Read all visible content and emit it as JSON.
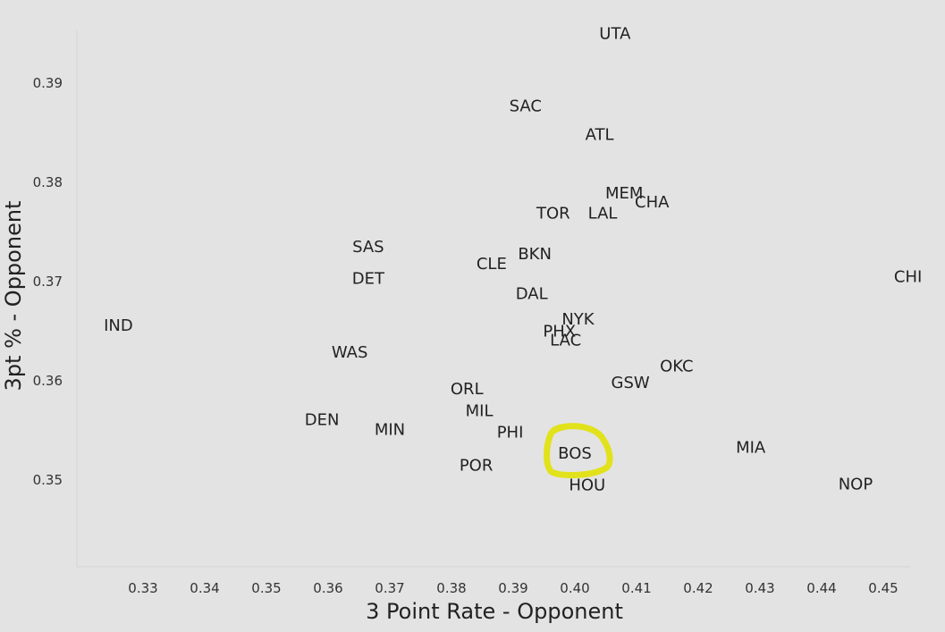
{
  "chart_data": {
    "type": "scatter",
    "title": "",
    "xlabel": "3 Point Rate - Opponent",
    "ylabel": "3pt % - Opponent",
    "xlim": [
      0.32,
      0.455
    ],
    "ylim": [
      0.341,
      0.396
    ],
    "xticks": [
      "0.33",
      "0.34",
      "0.35",
      "0.36",
      "0.37",
      "0.38",
      "0.39",
      "0.40",
      "0.41",
      "0.42",
      "0.43",
      "0.44",
      "0.45"
    ],
    "yticks": [
      "0.35",
      "0.36",
      "0.37",
      "0.38",
      "0.39"
    ],
    "grid": false,
    "points": [
      {
        "label": "UTA",
        "x": 0.4065,
        "y": 0.395
      },
      {
        "label": "SAC",
        "x": 0.392,
        "y": 0.3877
      },
      {
        "label": "ATL",
        "x": 0.404,
        "y": 0.3848
      },
      {
        "label": "MEM",
        "x": 0.408,
        "y": 0.3789
      },
      {
        "label": "CHA",
        "x": 0.4125,
        "y": 0.378
      },
      {
        "label": "TOR",
        "x": 0.3965,
        "y": 0.3769
      },
      {
        "label": "LAL",
        "x": 0.4045,
        "y": 0.3769
      },
      {
        "label": "SAS",
        "x": 0.3665,
        "y": 0.3735
      },
      {
        "label": "BKN",
        "x": 0.3935,
        "y": 0.3728
      },
      {
        "label": "CLE",
        "x": 0.3865,
        "y": 0.3718
      },
      {
        "label": "DET",
        "x": 0.3665,
        "y": 0.3703
      },
      {
        "label": "CHI",
        "x": 0.454,
        "y": 0.3705
      },
      {
        "label": "DAL",
        "x": 0.393,
        "y": 0.3688
      },
      {
        "label": "NYK",
        "x": 0.4005,
        "y": 0.3662
      },
      {
        "label": "IND",
        "x": 0.326,
        "y": 0.3656
      },
      {
        "label": "PHX",
        "x": 0.3975,
        "y": 0.365
      },
      {
        "label": "LAC",
        "x": 0.3985,
        "y": 0.3641
      },
      {
        "label": "WAS",
        "x": 0.3635,
        "y": 0.3629
      },
      {
        "label": "OKC",
        "x": 0.4165,
        "y": 0.3615
      },
      {
        "label": "GSW",
        "x": 0.409,
        "y": 0.3598
      },
      {
        "label": "ORL",
        "x": 0.3825,
        "y": 0.3592
      },
      {
        "label": "MIL",
        "x": 0.3845,
        "y": 0.357
      },
      {
        "label": "DEN",
        "x": 0.359,
        "y": 0.3561
      },
      {
        "label": "MIN",
        "x": 0.37,
        "y": 0.3551
      },
      {
        "label": "PHI",
        "x": 0.3895,
        "y": 0.3548
      },
      {
        "label": "MIA",
        "x": 0.4285,
        "y": 0.3533
      },
      {
        "label": "BOS",
        "x": 0.4,
        "y": 0.3527
      },
      {
        "label": "POR",
        "x": 0.384,
        "y": 0.3515
      },
      {
        "label": "NOP",
        "x": 0.4455,
        "y": 0.3496
      },
      {
        "label": "HOU",
        "x": 0.402,
        "y": 0.3495
      }
    ],
    "highlighted": "BOS",
    "highlight_color": "#e2e21c"
  }
}
